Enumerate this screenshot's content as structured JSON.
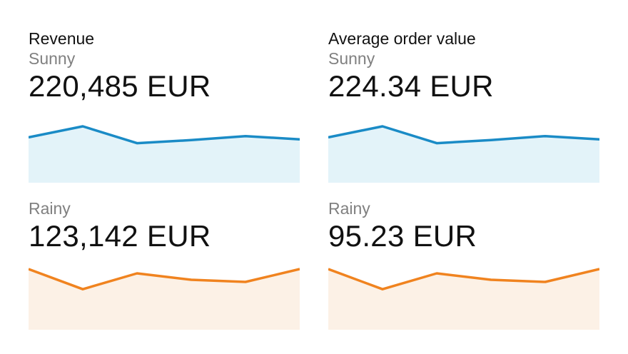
{
  "colors": {
    "sunny_line": "#1a8bc6",
    "sunny_fill": "#e3f3f9",
    "rainy_line": "#f0831f",
    "rainy_fill": "#fcf1e6"
  },
  "chart_data": [
    {
      "type": "area",
      "title": "Revenue",
      "series": [
        {
          "name": "Sunny",
          "value_label": "220,485 EUR",
          "values": [
            52,
            80,
            37,
            45,
            55,
            47
          ]
        },
        {
          "name": "Rainy",
          "value_label": "123,142 EUR",
          "values": [
            75,
            28,
            65,
            50,
            45,
            75
          ]
        }
      ]
    },
    {
      "type": "area",
      "title": "Average order value",
      "series": [
        {
          "name": "Sunny",
          "value_label": "224.34 EUR",
          "values": [
            52,
            80,
            37,
            45,
            55,
            47
          ]
        },
        {
          "name": "Rainy",
          "value_label": "95.23 EUR",
          "values": [
            75,
            28,
            65,
            50,
            45,
            75
          ]
        }
      ]
    }
  ]
}
